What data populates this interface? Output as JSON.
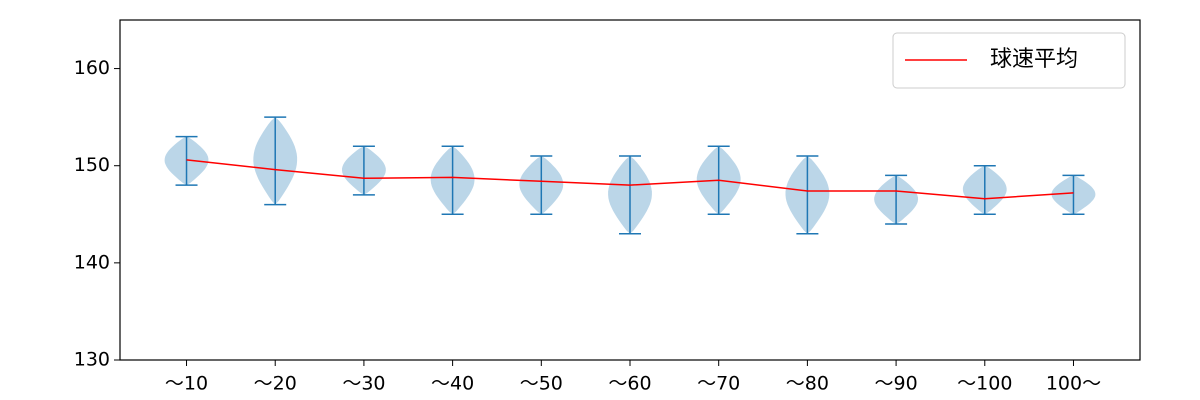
{
  "chart_data": {
    "type": "violin",
    "categories": [
      "～10",
      "～20",
      "～30",
      "～40",
      "～50",
      "～60",
      "～70",
      "～80",
      "～90",
      "～100",
      "100～"
    ],
    "min": [
      148,
      146,
      147,
      145,
      145,
      143,
      145,
      143,
      144,
      145,
      145
    ],
    "max": [
      153,
      155,
      152,
      152,
      151,
      151,
      152,
      151,
      149,
      150,
      149
    ],
    "violin_color": "#1f77b4",
    "series": [
      {
        "name": "球速平均",
        "color": "#ff0000",
        "values": [
          150.6,
          149.6,
          148.7,
          148.8,
          148.4,
          148.0,
          148.5,
          147.4,
          147.4,
          146.6,
          147.2
        ]
      }
    ],
    "ylim": [
      130,
      165
    ],
    "yticks": [
      130,
      140,
      150,
      160
    ],
    "legend": "upper right"
  }
}
